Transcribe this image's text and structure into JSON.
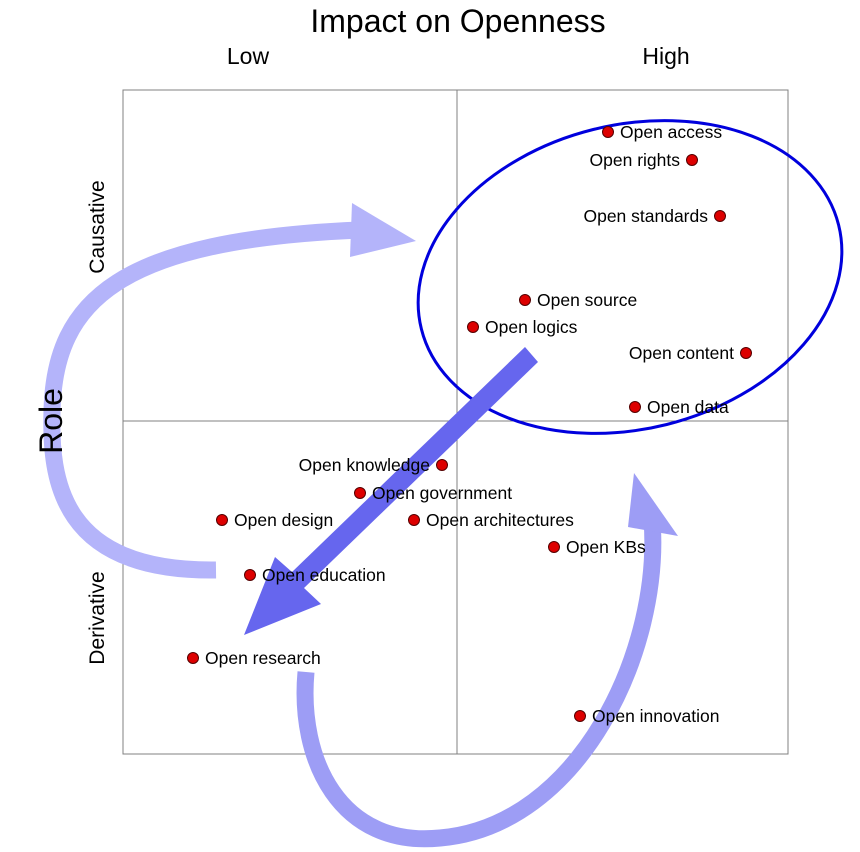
{
  "title": "Impact on Openness",
  "columns": {
    "low": "Low",
    "high": "High"
  },
  "rows": {
    "causative": "Causative",
    "derivative": "Derivative"
  },
  "axis_label": "Role",
  "colors": {
    "dot_fill": "#dd0000",
    "dot_stroke": "#550000",
    "ellipse": "#0000dd",
    "arrow_light": "#b4b4fa",
    "arrow_mid": "#9d9df5",
    "arrow_dark": "#6666ee",
    "grid": "#808080"
  },
  "items": [
    {
      "label": "Open access"
    },
    {
      "label": "Open rights"
    },
    {
      "label": "Open standards"
    },
    {
      "label": "Open source"
    },
    {
      "label": "Open logics"
    },
    {
      "label": "Open content"
    },
    {
      "label": "Open data"
    },
    {
      "label": "Open knowledge"
    },
    {
      "label": "Open government"
    },
    {
      "label": "Open design"
    },
    {
      "label": "Open architectures"
    },
    {
      "label": "Open KBs"
    },
    {
      "label": "Open education"
    },
    {
      "label": "Open research"
    },
    {
      "label": "Open innovation"
    }
  ]
}
